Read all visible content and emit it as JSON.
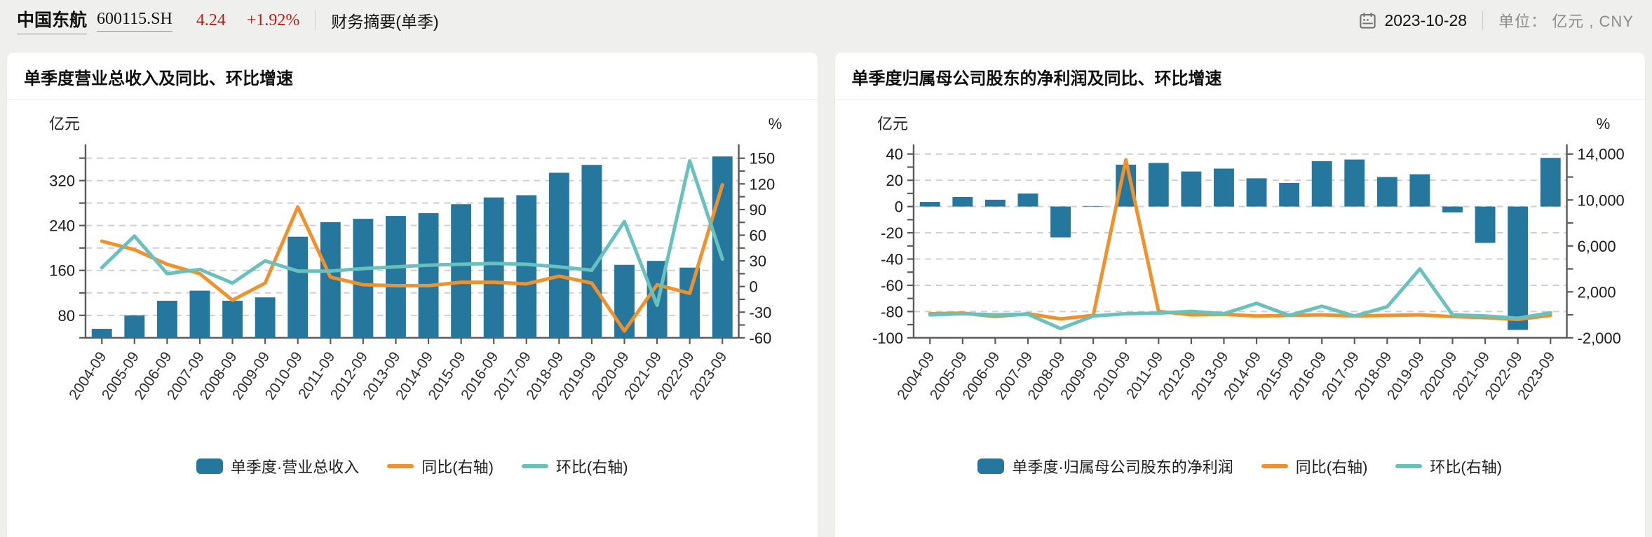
{
  "header": {
    "stock_name": "中国东航",
    "stock_code": "600115.SH",
    "price": "4.24",
    "change_pct": "+1.92%",
    "report_type": "财务摘要(单季)",
    "date": "2023-10-28",
    "unit_label": "单位： 亿元 , CNY"
  },
  "colors": {
    "bar": "#26779d",
    "yoy": "#f0912c",
    "qoq": "#68c1bd",
    "red": "#b71d12",
    "grid": "#cfcfcf",
    "axis": "#5a5a5a",
    "tick_text": "#1a1a1a",
    "xlabel_text": "#2e2e2e"
  },
  "chart_data": [
    {
      "type": "bar+line dual-axis",
      "title": "单季度营业总收入及同比、环比增速",
      "categories": [
        "2004-09",
        "2005-09",
        "2006-09",
        "2007-09",
        "2008-09",
        "2009-09",
        "2010-09",
        "2011-09",
        "2012-09",
        "2013-09",
        "2014-09",
        "2015-09",
        "2016-09",
        "2017-09",
        "2018-09",
        "2019-09",
        "2020-09",
        "2021-09",
        "2022-09",
        "2023-09"
      ],
      "bars": {
        "name": "单季度·营业总收入",
        "axis": "left",
        "values": [
          56,
          80,
          106,
          124,
          106,
          112,
          220,
          246,
          252,
          257,
          262,
          278,
          290,
          294,
          334,
          348,
          170,
          177,
          165,
          363
        ]
      },
      "yoy": {
        "name": "同比(右轴)",
        "axis": "right",
        "values": [
          53,
          43,
          26,
          15,
          -16,
          4,
          93,
          11,
          2,
          1,
          1,
          5,
          5,
          3,
          12,
          4,
          -52,
          2,
          -8,
          119
        ]
      },
      "qoq": {
        "name": "环比(右轴)",
        "axis": "right",
        "values": [
          22,
          59,
          15,
          20,
          4,
          30,
          18,
          18,
          21,
          23,
          25,
          26,
          27,
          26,
          23,
          19,
          76,
          -22,
          147,
          32
        ]
      },
      "left_axis": {
        "unit": "亿元",
        "min": 40,
        "max": 372,
        "tick": 40,
        "label": 80,
        "label_offset": 0,
        "grid": 40,
        "bar_base": 40
      },
      "right_axis": {
        "unit": "%",
        "min": -60,
        "max": 158,
        "tick": 15,
        "label": 30,
        "label_offset": 0
      },
      "grid_style": "dashed",
      "legend_position": "bottom-center"
    },
    {
      "type": "bar+line dual-axis",
      "title": "单季度归属母公司股东的净利润及同比、环比增速",
      "categories": [
        "2004-09",
        "2005-09",
        "2006-09",
        "2007-09",
        "2008-09",
        "2009-09",
        "2010-09",
        "2011-09",
        "2012-09",
        "2013-09",
        "2014-09",
        "2015-09",
        "2016-09",
        "2017-09",
        "2018-09",
        "2019-09",
        "2020-09",
        "2021-09",
        "2022-09",
        "2023-09"
      ],
      "bars": {
        "name": "单季度·归属母公司股东的净利润",
        "axis": "left",
        "values": [
          3.5,
          7.3,
          5.2,
          9.9,
          -23.5,
          0.4,
          31.9,
          33.2,
          26.7,
          28.9,
          21.5,
          18.0,
          34.6,
          35.8,
          22.5,
          24.6,
          -4.5,
          -27.7,
          -94,
          37.1
        ]
      },
      "yoy": {
        "name": "同比(右轴)",
        "axis": "right",
        "values": [
          100,
          150,
          -150,
          100,
          -350,
          -50,
          13500,
          300,
          0,
          50,
          -100,
          -50,
          0,
          -100,
          -50,
          0,
          -150,
          -250,
          -400,
          -50
        ]
      },
      "qoq": {
        "name": "环比(右轴)",
        "axis": "right",
        "values": [
          0,
          100,
          0,
          50,
          -1200,
          -100,
          100,
          150,
          300,
          100,
          1000,
          -50,
          750,
          -100,
          700,
          4000,
          0,
          -100,
          -300,
          180
        ]
      },
      "left_axis": {
        "unit": "亿元",
        "min": -100,
        "max": 42,
        "tick": 10,
        "label": 20,
        "label_offset": 0,
        "grid": 20,
        "bar_base": 0
      },
      "right_axis": {
        "unit": "%",
        "min": -2000,
        "max": 14230,
        "tick": 2000,
        "label": 4000,
        "label_offset": 2000
      },
      "grid_style": "dashed",
      "legend_position": "bottom-center"
    }
  ]
}
